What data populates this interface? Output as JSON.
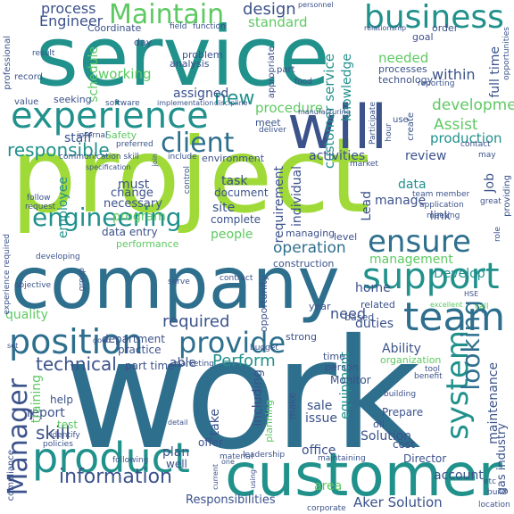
{
  "palette": {
    "big_blue": "#2e6f8e",
    "teal": "#21918c",
    "green": "#5ec962",
    "lime": "#a0da39",
    "purple": "#3b528b",
    "dark": "#440154",
    "yellowgreen": "#bddf26"
  },
  "words": [
    {
      "text": "service",
      "color": "#21918c",
      "orientation": "horizontal"
    },
    {
      "text": "project",
      "color": "#a0da39",
      "orientation": "horizontal"
    },
    {
      "text": "work",
      "color": "#2e6f8e",
      "orientation": "horizontal"
    },
    {
      "text": "company",
      "color": "#2e6f8e",
      "orientation": "horizontal"
    },
    {
      "text": "customer",
      "color": "#21918c",
      "orientation": "horizontal"
    },
    {
      "text": "will",
      "color": "#3b528b",
      "orientation": "horizontal"
    },
    {
      "text": "experience",
      "color": "#21918c",
      "orientation": "horizontal"
    },
    {
      "text": "business",
      "color": "#21918c",
      "orientation": "horizontal"
    },
    {
      "text": "Maintain",
      "color": "#5ec962",
      "orientation": "horizontal"
    },
    {
      "text": "client",
      "color": "#2e6f8e",
      "orientation": "horizontal"
    },
    {
      "text": "team",
      "color": "#2e6f8e",
      "orientation": "horizontal"
    },
    {
      "text": "product",
      "color": "#21918c",
      "orientation": "horizontal"
    },
    {
      "text": "position",
      "color": "#2e6f8e",
      "orientation": "horizontal"
    },
    {
      "text": "provide",
      "color": "#2e6f8e",
      "orientation": "horizontal"
    },
    {
      "text": "support",
      "color": "#21918c",
      "orientation": "horizontal"
    },
    {
      "text": "ensure",
      "color": "#2e6f8e",
      "orientation": "horizontal"
    },
    {
      "text": "engineering",
      "color": "#21918c",
      "orientation": "horizontal"
    },
    {
      "text": "system",
      "color": "#21918c",
      "orientation": "vertical"
    },
    {
      "text": "looking",
      "color": "#2e6f8e",
      "orientation": "vertical"
    },
    {
      "text": "Manager",
      "color": "#3b528b",
      "orientation": "vertical"
    },
    {
      "text": "information",
      "color": "#3b528b",
      "orientation": "horizontal"
    },
    {
      "text": "Responsibilities",
      "color": "#3b528b",
      "orientation": "horizontal"
    },
    {
      "text": "Aker Solution",
      "color": "#3b528b",
      "orientation": "horizontal"
    },
    {
      "text": "technical",
      "color": "#3b528b",
      "orientation": "horizontal"
    },
    {
      "text": "skill",
      "color": "#3b528b",
      "orientation": "horizontal"
    },
    {
      "text": "required",
      "color": "#3b528b",
      "orientation": "horizontal"
    },
    {
      "text": "Perform",
      "color": "#21918c",
      "orientation": "horizontal"
    },
    {
      "text": "responsible",
      "color": "#21918c",
      "orientation": "horizontal"
    },
    {
      "text": "new",
      "color": "#21918c",
      "orientation": "horizontal"
    },
    {
      "text": "design",
      "color": "#3b528b",
      "orientation": "horizontal"
    },
    {
      "text": "process",
      "color": "#3b528b",
      "orientation": "horizontal"
    },
    {
      "text": "Engineer",
      "color": "#3b528b",
      "orientation": "horizontal"
    },
    {
      "text": "standard",
      "color": "#5ec962",
      "orientation": "horizontal"
    },
    {
      "text": "customer service",
      "color": "#21918c",
      "orientation": "vertical"
    },
    {
      "text": "knowledge",
      "color": "#21918c",
      "orientation": "vertical"
    },
    {
      "text": "development",
      "color": "#5ec962",
      "orientation": "horizontal"
    },
    {
      "text": "Assist",
      "color": "#5ec962",
      "orientation": "horizontal"
    },
    {
      "text": "production",
      "color": "#21918c",
      "orientation": "horizontal"
    },
    {
      "text": "full time",
      "color": "#3b528b",
      "orientation": "vertical"
    },
    {
      "text": "working",
      "color": "#5ec962",
      "orientation": "horizontal"
    },
    {
      "text": "needed",
      "color": "#5ec962",
      "orientation": "horizontal"
    },
    {
      "text": "within",
      "color": "#3b528b",
      "orientation": "horizontal"
    },
    {
      "text": "procedure",
      "color": "#5ec962",
      "orientation": "horizontal"
    },
    {
      "text": "activities",
      "color": "#3b528b",
      "orientation": "horizontal"
    },
    {
      "text": "review",
      "color": "#3b528b",
      "orientation": "horizontal"
    },
    {
      "text": "staff",
      "color": "#3b528b",
      "orientation": "horizontal"
    },
    {
      "text": "assigned",
      "color": "#3b528b",
      "orientation": "horizontal"
    },
    {
      "text": "operation",
      "color": "#2e6f8e",
      "orientation": "horizontal"
    },
    {
      "text": "management",
      "color": "#5ec962",
      "orientation": "horizontal"
    },
    {
      "text": "data",
      "color": "#21918c",
      "orientation": "horizontal"
    },
    {
      "text": "manage",
      "color": "#3b528b",
      "orientation": "horizontal"
    },
    {
      "text": "link",
      "color": "#3b528b",
      "orientation": "horizontal"
    },
    {
      "text": "Develop",
      "color": "#21918c",
      "orientation": "horizontal"
    },
    {
      "text": "home",
      "color": "#3b528b",
      "orientation": "horizontal"
    },
    {
      "text": "need",
      "color": "#3b528b",
      "orientation": "horizontal"
    },
    {
      "text": "duties",
      "color": "#3b528b",
      "orientation": "horizontal"
    },
    {
      "text": "quality",
      "color": "#5ec962",
      "orientation": "horizontal"
    },
    {
      "text": "program",
      "color": "#5ec962",
      "orientation": "horizontal"
    },
    {
      "text": "people",
      "color": "#5ec962",
      "orientation": "horizontal"
    },
    {
      "text": "able",
      "color": "#3b528b",
      "orientation": "horizontal"
    },
    {
      "text": "equipment",
      "color": "#21918c",
      "orientation": "vertical"
    },
    {
      "text": "Ability",
      "color": "#3b528b",
      "orientation": "horizontal"
    },
    {
      "text": "including",
      "color": "#3b528b",
      "orientation": "vertical"
    },
    {
      "text": "sale",
      "color": "#3b528b",
      "orientation": "horizontal"
    },
    {
      "text": "issue",
      "color": "#3b528b",
      "orientation": "horizontal"
    },
    {
      "text": "Solution",
      "color": "#3b528b",
      "orientation": "horizontal"
    },
    {
      "text": "office",
      "color": "#3b528b",
      "orientation": "horizontal"
    },
    {
      "text": "account",
      "color": "#3b528b",
      "orientation": "horizontal"
    },
    {
      "text": "report",
      "color": "#3b528b",
      "orientation": "horizontal"
    },
    {
      "text": "training",
      "color": "#5ec962",
      "orientation": "vertical"
    },
    {
      "text": "plan",
      "color": "#3b528b",
      "orientation": "horizontal"
    },
    {
      "text": "take",
      "color": "#3b528b",
      "orientation": "vertical"
    },
    {
      "text": "site",
      "color": "#3b528b",
      "orientation": "horizontal"
    },
    {
      "text": "task",
      "color": "#3b528b",
      "orientation": "horizontal"
    },
    {
      "text": "requirement",
      "color": "#3b528b",
      "orientation": "vertical"
    },
    {
      "text": "individual",
      "color": "#3b528b",
      "orientation": "vertical"
    },
    {
      "text": "employee",
      "color": "#21918c",
      "orientation": "vertical"
    },
    {
      "text": "schedule",
      "color": "#5ec962",
      "orientation": "vertical"
    },
    {
      "text": "maintenance",
      "color": "#3b528b",
      "orientation": "vertical"
    },
    {
      "text": "gas industry",
      "color": "#3b528b",
      "orientation": "vertical"
    },
    {
      "text": "Lead",
      "color": "#3b528b",
      "orientation": "vertical"
    },
    {
      "text": "Job",
      "color": "#3b528b",
      "orientation": "vertical"
    },
    {
      "text": "must",
      "color": "#3b528b",
      "orientation": "horizontal"
    },
    {
      "text": "change",
      "color": "#3b528b",
      "orientation": "horizontal"
    },
    {
      "text": "necessary",
      "color": "#3b528b",
      "orientation": "horizontal"
    },
    {
      "text": "document",
      "color": "#3b528b",
      "orientation": "horizontal"
    },
    {
      "text": "complete",
      "color": "#3b528b",
      "orientation": "horizontal"
    },
    {
      "text": "data entry",
      "color": "#3b528b",
      "orientation": "horizontal"
    },
    {
      "text": "part time",
      "color": "#3b528b",
      "orientation": "horizontal"
    },
    {
      "text": "practice",
      "color": "#3b528b",
      "orientation": "horizontal"
    },
    {
      "text": "department",
      "color": "#3b528b",
      "orientation": "horizontal"
    },
    {
      "text": "Monitor",
      "color": "#3b528b",
      "orientation": "horizontal"
    },
    {
      "text": "Prepare",
      "color": "#3b528b",
      "orientation": "horizontal"
    },
    {
      "text": "Director",
      "color": "#3b528b",
      "orientation": "horizontal"
    },
    {
      "text": "area",
      "color": "#5ec962",
      "orientation": "horizontal"
    },
    {
      "text": "cost",
      "color": "#3b528b",
      "orientation": "horizontal"
    },
    {
      "text": "help",
      "color": "#3b528b",
      "orientation": "horizontal"
    },
    {
      "text": "offer",
      "color": "#3b528b",
      "orientation": "horizontal"
    },
    {
      "text": "well",
      "color": "#3b528b",
      "orientation": "horizontal"
    },
    {
      "text": "test",
      "color": "#5ec962",
      "orientation": "horizontal"
    },
    {
      "text": "Coordinate",
      "color": "#3b528b",
      "orientation": "horizontal"
    },
    {
      "text": "analysis",
      "color": "#3b528b",
      "orientation": "horizontal"
    },
    {
      "text": "problem",
      "color": "#3b528b",
      "orientation": "horizontal"
    },
    {
      "text": "seeking",
      "color": "#3b528b",
      "orientation": "horizontal"
    },
    {
      "text": "Safety",
      "color": "#5ec962",
      "orientation": "horizontal"
    },
    {
      "text": "environment",
      "color": "#3b528b",
      "orientation": "horizontal"
    },
    {
      "text": "meet",
      "color": "#3b528b",
      "orientation": "horizontal"
    },
    {
      "text": "performance",
      "color": "#5ec962",
      "orientation": "horizontal"
    },
    {
      "text": "construction",
      "color": "#3b528b",
      "orientation": "horizontal"
    },
    {
      "text": "managing",
      "color": "#3b528b",
      "orientation": "horizontal"
    },
    {
      "text": "level",
      "color": "#3b528b",
      "orientation": "horizontal"
    },
    {
      "text": "opportunity",
      "color": "#3b528b",
      "orientation": "vertical"
    },
    {
      "text": "related",
      "color": "#3b528b",
      "orientation": "horizontal"
    },
    {
      "text": "based",
      "color": "#3b528b",
      "orientation": "horizontal"
    },
    {
      "text": "year",
      "color": "#3b528b",
      "orientation": "horizontal"
    },
    {
      "text": "strong",
      "color": "#3b528b",
      "orientation": "horizontal"
    },
    {
      "text": "organization",
      "color": "#5ec962",
      "orientation": "horizontal"
    },
    {
      "text": "time",
      "color": "#3b528b",
      "orientation": "horizontal"
    },
    {
      "text": "person",
      "color": "#3b528b",
      "orientation": "horizontal"
    },
    {
      "text": "oil",
      "color": "#3b528b",
      "orientation": "horizontal"
    },
    {
      "text": "within",
      "color": "#3b528b",
      "orientation": "horizontal"
    },
    {
      "text": "processes",
      "color": "#3b528b",
      "orientation": "horizontal"
    },
    {
      "text": "technology",
      "color": "#3b528b",
      "orientation": "horizontal"
    },
    {
      "text": "goal",
      "color": "#3b528b",
      "orientation": "horizontal"
    },
    {
      "text": "order",
      "color": "#3b528b",
      "orientation": "horizontal"
    },
    {
      "text": "day",
      "color": "#3b528b",
      "orientation": "horizontal"
    },
    {
      "text": "professional",
      "color": "#3b528b",
      "orientation": "vertical"
    },
    {
      "text": "result",
      "color": "#3b528b",
      "orientation": "horizontal"
    },
    {
      "text": "record",
      "color": "#3b528b",
      "orientation": "horizontal"
    },
    {
      "text": "value",
      "color": "#3b528b",
      "orientation": "horizontal"
    },
    {
      "text": "software",
      "color": "#3b528b",
      "orientation": "horizontal"
    },
    {
      "text": "internal",
      "color": "#3b528b",
      "orientation": "horizontal"
    },
    {
      "text": "communication skill",
      "color": "#3b528b",
      "orientation": "horizontal"
    },
    {
      "text": "include",
      "color": "#3b528b",
      "orientation": "horizontal"
    },
    {
      "text": "preferred",
      "color": "#3b528b",
      "orientation": "horizontal"
    },
    {
      "text": "deliver",
      "color": "#3b528b",
      "orientation": "horizontal"
    },
    {
      "text": "appropriate",
      "color": "#3b528b",
      "orientation": "vertical"
    },
    {
      "text": "part",
      "color": "#3b528b",
      "orientation": "horizontal"
    },
    {
      "text": "food",
      "color": "#3b528b",
      "orientation": "horizontal"
    },
    {
      "text": "field",
      "color": "#3b528b",
      "orientation": "horizontal"
    },
    {
      "text": "function",
      "color": "#3b528b",
      "orientation": "horizontal"
    },
    {
      "text": "market",
      "color": "#3b528b",
      "orientation": "horizontal"
    },
    {
      "text": "application",
      "color": "#3b528b",
      "orientation": "horizontal"
    },
    {
      "text": "meeting",
      "color": "#3b528b",
      "orientation": "horizontal"
    },
    {
      "text": "team member",
      "color": "#3b528b",
      "orientation": "horizontal"
    },
    {
      "text": "role",
      "color": "#3b528b",
      "orientation": "vertical"
    },
    {
      "text": "providing",
      "color": "#3b528b",
      "orientation": "vertical"
    },
    {
      "text": "contact",
      "color": "#3b528b",
      "orientation": "horizontal"
    },
    {
      "text": "may",
      "color": "#3b528b",
      "orientation": "horizontal"
    },
    {
      "text": "use",
      "color": "#3b528b",
      "orientation": "horizontal"
    },
    {
      "text": "create",
      "color": "#3b528b",
      "orientation": "vertical"
    },
    {
      "text": "reporting",
      "color": "#3b528b",
      "orientation": "horizontal"
    },
    {
      "text": "great",
      "color": "#3b528b",
      "orientation": "horizontal"
    },
    {
      "text": "marketing",
      "color": "#3b528b",
      "orientation": "horizontal"
    },
    {
      "text": "budget",
      "color": "#3b528b",
      "orientation": "horizontal"
    },
    {
      "text": "building",
      "color": "#3b528b",
      "orientation": "horizontal"
    },
    {
      "text": "tool",
      "color": "#3b528b",
      "orientation": "horizontal"
    },
    {
      "text": "benefit",
      "color": "#3b528b",
      "orientation": "horizontal"
    },
    {
      "text": "etc",
      "color": "#3b528b",
      "orientation": "horizontal"
    },
    {
      "text": "build",
      "color": "#3b528b",
      "orientation": "horizontal"
    },
    {
      "text": "location",
      "color": "#3b528b",
      "orientation": "horizontal"
    },
    {
      "text": "corporate",
      "color": "#3b528b",
      "orientation": "horizontal"
    },
    {
      "text": "leadership",
      "color": "#3b528b",
      "orientation": "horizontal"
    },
    {
      "text": "material",
      "color": "#3b528b",
      "orientation": "horizontal"
    },
    {
      "text": "maintaining",
      "color": "#3b528b",
      "orientation": "horizontal"
    },
    {
      "text": "compliance",
      "color": "#3b528b",
      "orientation": "vertical"
    },
    {
      "text": "policies",
      "color": "#3b528b",
      "orientation": "horizontal"
    },
    {
      "text": "identify",
      "color": "#3b528b",
      "orientation": "horizontal"
    },
    {
      "text": "following",
      "color": "#3b528b",
      "orientation": "horizontal"
    },
    {
      "text": "experience required",
      "color": "#3b528b",
      "orientation": "vertical"
    },
    {
      "text": "objective",
      "color": "#3b528b",
      "orientation": "horizontal"
    },
    {
      "text": "developing",
      "color": "#3b528b",
      "orientation": "horizontal"
    },
    {
      "text": "follow",
      "color": "#3b528b",
      "orientation": "horizontal"
    },
    {
      "text": "request",
      "color": "#3b528b",
      "orientation": "horizontal"
    },
    {
      "text": "group",
      "color": "#3b528b",
      "orientation": "vertical"
    },
    {
      "text": "serve",
      "color": "#3b528b",
      "orientation": "horizontal"
    },
    {
      "text": "contract",
      "color": "#3b528b",
      "orientation": "horizontal"
    },
    {
      "text": "planning",
      "color": "#5ec962",
      "orientation": "vertical"
    },
    {
      "text": "make",
      "color": "#3b528b",
      "orientation": "vertical"
    },
    {
      "text": "personnel",
      "color": "#3b528b",
      "orientation": "horizontal"
    },
    {
      "text": "relationship",
      "color": "#3b528b",
      "orientation": "horizontal"
    },
    {
      "text": "opportunities",
      "color": "#3b528b",
      "orientation": "vertical"
    },
    {
      "text": "implementation",
      "color": "#3b528b",
      "orientation": "horizontal"
    },
    {
      "text": "discipline",
      "color": "#3b528b",
      "orientation": "horizontal"
    },
    {
      "text": "manufacturing",
      "color": "#3b528b",
      "orientation": "horizontal"
    },
    {
      "text": "Participate",
      "color": "#3b528b",
      "orientation": "vertical"
    },
    {
      "text": "HSE",
      "color": "#3b528b",
      "orientation": "horizontal"
    },
    {
      "text": "call",
      "color": "#5ec962",
      "orientation": "horizontal"
    },
    {
      "text": "excellent",
      "color": "#5ec962",
      "orientation": "horizontal"
    },
    {
      "text": "control",
      "color": "#3b528b",
      "orientation": "vertical"
    },
    {
      "text": "join",
      "color": "#3b528b",
      "orientation": "vertical"
    },
    {
      "text": "specification",
      "color": "#3b528b",
      "orientation": "horizontal"
    },
    {
      "text": "current",
      "color": "#3b528b",
      "orientation": "vertical"
    },
    {
      "text": "one",
      "color": "#3b528b",
      "orientation": "horizontal"
    },
    {
      "text": "using",
      "color": "#3b528b",
      "orientation": "vertical"
    },
    {
      "text": "set",
      "color": "#3b528b",
      "orientation": "horizontal"
    },
    {
      "text": "good",
      "color": "#3b528b",
      "orientation": "horizontal"
    },
    {
      "text": "detail",
      "color": "#3b528b",
      "orientation": "horizontal"
    },
    {
      "text": "hour",
      "color": "#3b528b",
      "orientation": "vertical"
    }
  ]
}
